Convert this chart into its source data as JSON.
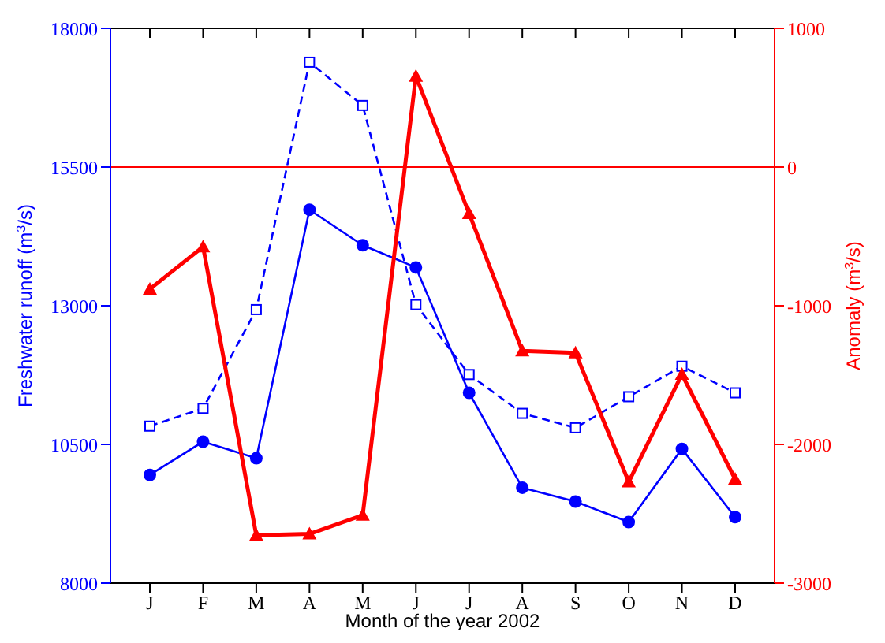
{
  "chart_data": {
    "type": "line",
    "xlabel": "Month of the year 2002",
    "ylabel": "Freshwater runoff (m$^{3}$/s)",
    "y2label": "Anomaly (m$^{3}$/s)",
    "categories": [
      "J",
      "F",
      "M",
      "A",
      "M",
      "J",
      "J",
      "A",
      "S",
      "O",
      "N",
      "D"
    ],
    "ylim": [
      8000,
      18000
    ],
    "yticks": [
      8000,
      10500,
      13000,
      15500,
      18000
    ],
    "y2lim": [
      -3000,
      1000
    ],
    "y2ticks": [
      -3000,
      -2000,
      -1000,
      0,
      1000
    ],
    "grid": false,
    "legend": false,
    "ref_lines": [
      {
        "axis": "y2",
        "value": 0,
        "color": "#ff0000"
      }
    ],
    "series": [
      {
        "color": "#0000ff",
        "marker": "circle",
        "line_style": "solid",
        "values": [
          9950,
          10550,
          10250,
          14730,
          14090,
          13690,
          11430,
          9720,
          9470,
          9100,
          10420,
          9190
        ]
      },
      {
        "color": "#0000ff",
        "marker": "square",
        "line_style": "dashed",
        "values": [
          10830,
          11150,
          12930,
          17390,
          16610,
          13020,
          11760,
          11060,
          10800,
          11360,
          11910,
          11430
        ]
      },
      {
        "color": "#ff0000",
        "marker": "triangle",
        "line_style": "solid",
        "axis": "y2",
        "values": [
          -880,
          -575,
          -2655,
          -2645,
          -2510,
          655,
          -335,
          -1325,
          -1340,
          -2270,
          -1495,
          -2250
        ]
      }
    ]
  }
}
